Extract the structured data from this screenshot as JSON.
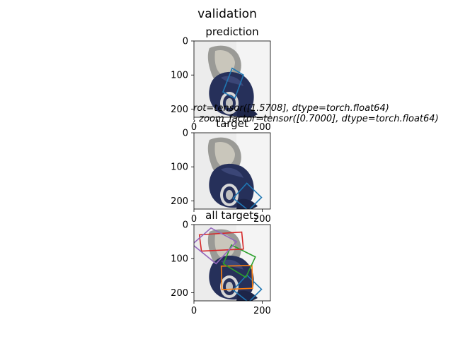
{
  "figure": {
    "suptitle": "validation",
    "annotation_line1": "rot=tensor([1.5708], dtype=torch.float64)",
    "annotation_line2": ", zoom_factor=tensor([0.7000], dtype=torch.float64)"
  },
  "colors": {
    "blue": "#1f77b4",
    "orange": "#ff7f0e",
    "green": "#2ca02c",
    "red": "#d62728",
    "purple": "#9467bd",
    "cap_navy": "#26305a",
    "background": "#ececec"
  },
  "chart_data": [
    {
      "type": "image-with-boxes",
      "title": "prediction",
      "xlim": [
        0,
        224
      ],
      "ylim": [
        224,
        0
      ],
      "xticks": [
        0,
        200
      ],
      "yticks": [
        0,
        100,
        200
      ],
      "tick_labels_x": [
        "0",
        "200"
      ],
      "tick_labels_y": [
        "0",
        "100",
        "200"
      ],
      "boxes": [
        {
          "color": "blue",
          "points": [
            [
              112,
              80
            ],
            [
              145,
              100
            ],
            [
              120,
              168
            ],
            [
              85,
              150
            ]
          ]
        }
      ]
    },
    {
      "type": "image-with-boxes",
      "title": "target",
      "xlim": [
        0,
        224
      ],
      "ylim": [
        224,
        0
      ],
      "xticks": [
        0,
        200
      ],
      "yticks": [
        0,
        100,
        200
      ],
      "tick_labels_x": [
        "0",
        "200"
      ],
      "tick_labels_y": [
        "0",
        "100",
        "200"
      ],
      "boxes": [
        {
          "color": "blue",
          "points": [
            [
              155,
              148
            ],
            [
              198,
              190
            ],
            [
              160,
              228
            ],
            [
              115,
              192
            ]
          ]
        }
      ]
    },
    {
      "type": "image-with-boxes",
      "title": "all targets",
      "xlim": [
        0,
        224
      ],
      "ylim": [
        224,
        0
      ],
      "xticks": [
        0,
        200
      ],
      "yticks": [
        0,
        100,
        200
      ],
      "tick_labels_x": [
        "0",
        "200"
      ],
      "tick_labels_y": [
        "0",
        "100",
        "200"
      ],
      "boxes": [
        {
          "color": "blue",
          "points": [
            [
              155,
              148
            ],
            [
              198,
              190
            ],
            [
              160,
              228
            ],
            [
              115,
              192
            ]
          ]
        },
        {
          "color": "orange",
          "points": [
            [
              80,
              122
            ],
            [
              170,
              120
            ],
            [
              172,
              187
            ],
            [
              82,
              191
            ]
          ]
        },
        {
          "color": "green",
          "points": [
            [
              110,
              60
            ],
            [
              180,
              95
            ],
            [
              152,
              155
            ],
            [
              86,
              115
            ]
          ]
        },
        {
          "color": "red",
          "points": [
            [
              16,
              30
            ],
            [
              140,
              22
            ],
            [
              145,
              72
            ],
            [
              22,
              78
            ]
          ]
        },
        {
          "color": "purple",
          "points": [
            [
              50,
              10
            ],
            [
              125,
              50
            ],
            [
              65,
              115
            ],
            [
              -5,
              58
            ]
          ]
        }
      ]
    }
  ]
}
